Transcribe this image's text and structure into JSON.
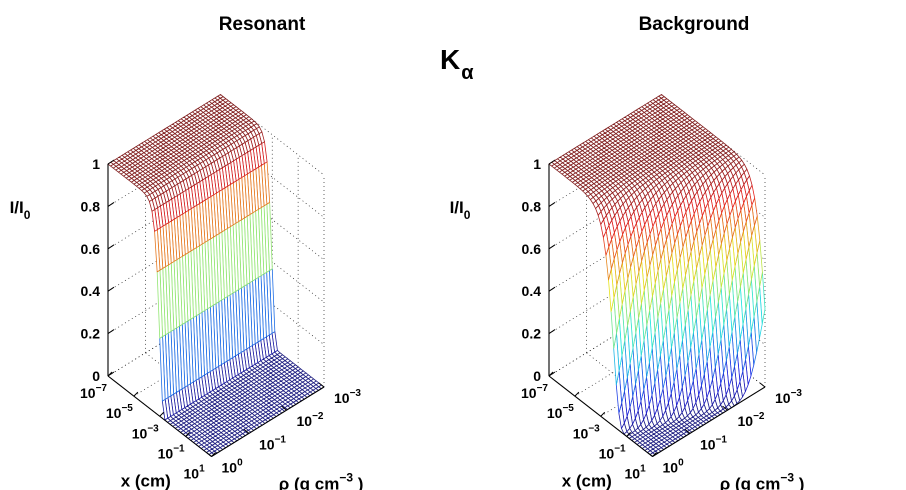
{
  "figure_title": {
    "main": "K",
    "sub": "α"
  },
  "chart_data": [
    {
      "type": "surface",
      "title": "Resonant",
      "zlabel_main": "I/I",
      "zlabel_sub": "0",
      "zticks": [
        "0",
        "0.2",
        "0.4",
        "0.6",
        "0.8",
        "1"
      ],
      "zlim": [
        0,
        1
      ],
      "x_axis": {
        "label": "x (cm)",
        "log_scale": true,
        "range_log10": [
          -7,
          1
        ],
        "ticks": [
          {
            "base": "10",
            "exp": "−7"
          },
          {
            "base": "10",
            "exp": "−5"
          },
          {
            "base": "10",
            "exp": "−3"
          },
          {
            "base": "10",
            "exp": "−1"
          },
          {
            "base": "10",
            "exp": "1"
          }
        ],
        "tick_log10": [
          -7,
          -5,
          -3,
          -1,
          1
        ]
      },
      "rho_axis": {
        "label": "ρ (g cm",
        "label_exp": "−3",
        "label_close": " )",
        "log_scale": true,
        "range_log10": [
          0,
          -3
        ],
        "ticks": [
          {
            "base": "10",
            "exp": "0"
          },
          {
            "base": "10",
            "exp": "−1"
          },
          {
            "base": "10",
            "exp": "−2"
          },
          {
            "base": "10",
            "exp": "−3"
          }
        ],
        "tick_log10": [
          0,
          -1,
          -2,
          -3
        ]
      },
      "model": {
        "form": "exp(-(x/xc)^2)",
        "xc_log10": -3,
        "rho_dependence": "none"
      },
      "grid": true,
      "colormap": "jet"
    },
    {
      "type": "surface",
      "title": "Background",
      "zlabel_main": "I/I",
      "zlabel_sub": "0",
      "zticks": [
        "0",
        "0.2",
        "0.4",
        "0.6",
        "0.8",
        "1"
      ],
      "zlim": [
        0,
        1
      ],
      "x_axis": {
        "label": "x (cm)",
        "log_scale": true,
        "range_log10": [
          -7,
          1
        ],
        "ticks": [
          {
            "base": "10",
            "exp": "−7"
          },
          {
            "base": "10",
            "exp": "−5"
          },
          {
            "base": "10",
            "exp": "−3"
          },
          {
            "base": "10",
            "exp": "−1"
          },
          {
            "base": "10",
            "exp": "1"
          }
        ],
        "tick_log10": [
          -7,
          -5,
          -3,
          -1,
          1
        ]
      },
      "rho_axis": {
        "label": "ρ (g cm",
        "label_exp": "−3",
        "label_close": " )",
        "log_scale": true,
        "range_log10": [
          0,
          -3
        ],
        "ticks": [
          {
            "base": "10",
            "exp": "0"
          },
          {
            "base": "10",
            "exp": "−1"
          },
          {
            "base": "10",
            "exp": "−2"
          },
          {
            "base": "10",
            "exp": "−3"
          }
        ],
        "tick_log10": [
          0,
          -1,
          -2,
          -3
        ]
      },
      "model": {
        "form": "exp(-rho*x/k)",
        "k_log10": -2,
        "rho_dependence": "linear"
      },
      "grid": true,
      "colormap": "jet"
    }
  ]
}
